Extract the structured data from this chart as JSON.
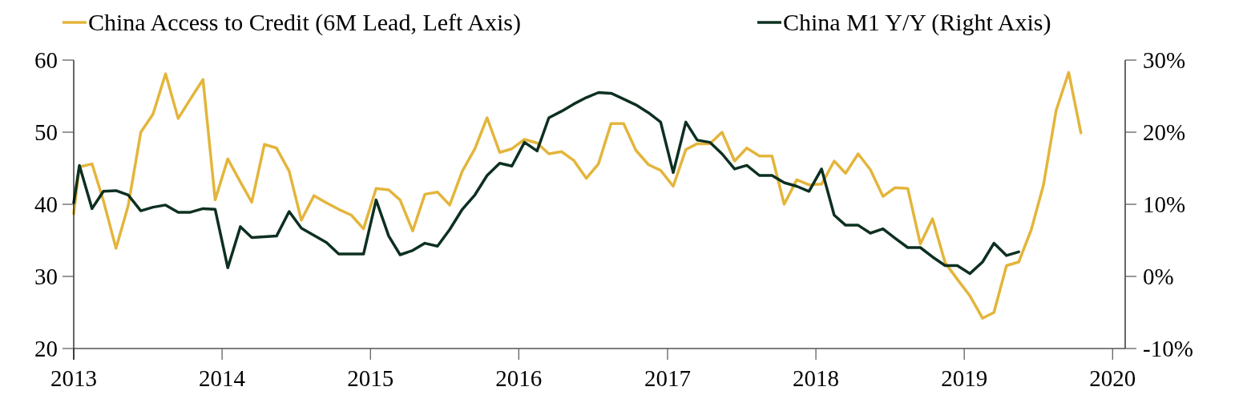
{
  "chart_data": {
    "type": "line",
    "legend": "top",
    "marker": "none",
    "line_style": "solid",
    "grid": false,
    "xlim": [
      "2013-01-01",
      "2020-02-01"
    ],
    "xticks": [
      {
        "value": "2013-01-01",
        "label": "2013"
      },
      {
        "value": "2014-01-01",
        "label": "2014"
      },
      {
        "value": "2015-01-01",
        "label": "2015"
      },
      {
        "value": "2016-01-01",
        "label": "2016"
      },
      {
        "value": "2017-01-01",
        "label": "2017"
      },
      {
        "value": "2018-01-01",
        "label": "2018"
      },
      {
        "value": "2019-01-01",
        "label": "2019"
      },
      {
        "value": "2020-01-01",
        "label": "2020"
      }
    ],
    "ylim": [
      20,
      60
    ],
    "yticks": [
      20,
      30,
      40,
      50,
      60
    ],
    "y2lim": [
      -10,
      30
    ],
    "y2ticks": [
      {
        "value": -10,
        "label": "-10%"
      },
      {
        "value": 0,
        "label": "0%"
      },
      {
        "value": 10,
        "label": "10%"
      },
      {
        "value": 20,
        "label": "20%"
      },
      {
        "value": 30,
        "label": "30%"
      }
    ],
    "series": [
      {
        "name": "China Access to Credit (6M Lead, Left Axis)",
        "color": "#e3b53b",
        "axis": "y",
        "x": [
          "2013-01-01",
          "2013-01-15",
          "2013-02-15",
          "2013-03-15",
          "2013-04-15",
          "2013-05-15",
          "2013-06-15",
          "2013-07-15",
          "2013-08-15",
          "2013-09-15",
          "2013-10-15",
          "2013-11-15",
          "2013-12-15",
          "2014-01-15",
          "2014-02-15",
          "2014-03-15",
          "2014-04-15",
          "2014-05-15",
          "2014-06-15",
          "2014-07-15",
          "2014-08-15",
          "2014-09-15",
          "2014-10-15",
          "2014-11-15",
          "2014-12-15",
          "2015-01-15",
          "2015-02-15",
          "2015-03-15",
          "2015-04-15",
          "2015-05-15",
          "2015-06-15",
          "2015-07-15",
          "2015-08-15",
          "2015-09-15",
          "2015-10-15",
          "2015-11-15",
          "2015-12-15",
          "2016-01-15",
          "2016-02-15",
          "2016-03-15",
          "2016-04-15",
          "2016-05-15",
          "2016-06-15",
          "2016-07-15",
          "2016-08-15",
          "2016-09-15",
          "2016-10-15",
          "2016-11-15",
          "2016-12-15",
          "2017-01-15",
          "2017-02-15",
          "2017-03-15",
          "2017-04-15",
          "2017-05-15",
          "2017-06-15",
          "2017-07-15",
          "2017-08-15",
          "2017-09-15",
          "2017-10-15",
          "2017-11-15",
          "2017-12-15",
          "2018-01-15",
          "2018-02-15",
          "2018-03-15",
          "2018-04-15",
          "2018-05-15",
          "2018-06-15",
          "2018-07-15",
          "2018-08-15",
          "2018-09-15",
          "2018-10-15",
          "2018-11-15",
          "2018-12-15",
          "2019-01-15",
          "2019-02-15",
          "2019-03-15",
          "2019-04-15",
          "2019-05-15",
          "2019-06-15",
          "2019-07-15",
          "2019-08-15",
          "2019-09-15",
          "2019-10-15"
        ],
        "values": [
          38.7,
          45.2,
          45.6,
          40.5,
          33.9,
          39.8,
          50.0,
          52.5,
          58.1,
          51.9,
          54.6,
          57.3,
          40.6,
          46.3,
          43.1,
          40.3,
          48.3,
          47.8,
          44.6,
          37.8,
          41.2,
          40.2,
          39.3,
          38.5,
          36.6,
          42.2,
          42.0,
          40.6,
          36.3,
          41.4,
          41.7,
          39.9,
          44.6,
          47.7,
          52.0,
          47.2,
          47.7,
          49.0,
          48.5,
          47.0,
          47.3,
          46.1,
          43.6,
          45.6,
          51.2,
          51.2,
          47.5,
          45.5,
          44.7,
          42.5,
          47.6,
          48.4,
          48.4,
          50.0,
          46.0,
          47.8,
          46.7,
          46.7,
          40.0,
          43.4,
          42.7,
          42.8,
          46.0,
          44.3,
          47.0,
          44.8,
          41.1,
          42.3,
          42.2,
          34.5,
          38.0,
          31.9,
          29.6,
          27.3,
          24.2,
          25.0,
          31.5,
          32.0,
          36.5,
          42.7,
          53.0,
          58.3,
          49.9
        ]
      },
      {
        "name": "China M1 Y/Y (Right Axis)",
        "color": "#0d3020",
        "axis": "y2",
        "x": [
          "2013-01-01",
          "2013-01-15",
          "2013-02-15",
          "2013-03-15",
          "2013-04-15",
          "2013-05-15",
          "2013-06-15",
          "2013-07-15",
          "2013-08-15",
          "2013-09-15",
          "2013-10-15",
          "2013-11-15",
          "2013-12-15",
          "2014-01-15",
          "2014-02-15",
          "2014-03-15",
          "2014-04-15",
          "2014-05-15",
          "2014-06-15",
          "2014-07-15",
          "2014-08-15",
          "2014-09-15",
          "2014-10-15",
          "2014-11-15",
          "2014-12-15",
          "2015-01-15",
          "2015-02-15",
          "2015-03-15",
          "2015-04-15",
          "2015-05-15",
          "2015-06-15",
          "2015-07-15",
          "2015-08-15",
          "2015-09-15",
          "2015-10-15",
          "2015-11-15",
          "2015-12-15",
          "2016-01-15",
          "2016-02-15",
          "2016-03-15",
          "2016-04-15",
          "2016-05-15",
          "2016-06-15",
          "2016-07-15",
          "2016-08-15",
          "2016-09-15",
          "2016-10-15",
          "2016-11-15",
          "2016-12-15",
          "2017-01-15",
          "2017-02-15",
          "2017-03-15",
          "2017-04-15",
          "2017-05-15",
          "2017-06-15",
          "2017-07-15",
          "2017-08-15",
          "2017-09-15",
          "2017-10-15",
          "2017-11-15",
          "2017-12-15",
          "2018-01-15",
          "2018-02-15",
          "2018-03-15",
          "2018-04-15",
          "2018-05-15",
          "2018-06-15",
          "2018-07-15",
          "2018-08-15",
          "2018-09-15",
          "2018-10-15",
          "2018-11-15",
          "2018-12-15",
          "2019-01-15",
          "2019-02-15",
          "2019-03-15",
          "2019-04-15",
          "2019-05-15"
        ],
        "values": [
          10.2,
          15.4,
          9.4,
          11.8,
          11.9,
          11.3,
          9.1,
          9.6,
          9.9,
          8.9,
          8.9,
          9.4,
          9.3,
          1.2,
          6.9,
          5.4,
          5.5,
          5.6,
          9.0,
          6.7,
          5.7,
          4.7,
          3.1,
          3.1,
          3.1,
          10.6,
          5.6,
          3.0,
          3.6,
          4.6,
          4.2,
          6.5,
          9.3,
          11.3,
          14.0,
          15.7,
          15.3,
          18.6,
          17.4,
          22.0,
          22.9,
          23.9,
          24.8,
          25.5,
          25.4,
          24.6,
          23.8,
          22.7,
          21.4,
          14.4,
          21.4,
          18.9,
          18.6,
          17.0,
          14.9,
          15.4,
          14.0,
          14.0,
          13.0,
          12.5,
          11.8,
          14.9,
          8.5,
          7.1,
          7.1,
          6.0,
          6.6,
          5.3,
          4.0,
          4.0,
          2.7,
          1.5,
          1.5,
          0.4,
          2.0,
          4.6,
          2.9,
          3.4
        ]
      }
    ]
  }
}
